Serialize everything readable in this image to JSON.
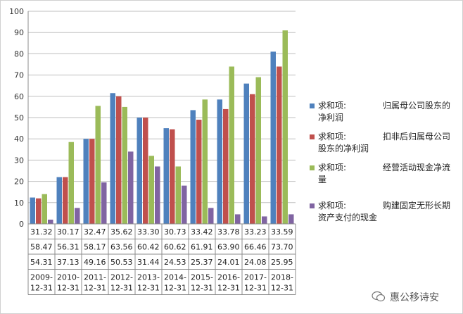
{
  "chart_data": {
    "type": "bar",
    "ylim": [
      0,
      100
    ],
    "yticks": [
      0,
      10,
      20,
      30,
      40,
      50,
      60,
      70,
      80,
      90,
      100
    ],
    "grid": true,
    "legend_position": "right",
    "categories": [
      "2009-12-31",
      "2010-12-31",
      "2011-12-31",
      "2012-12-31",
      "2013-12-31",
      "2014-12-31",
      "2015-12-31",
      "2016-12-31",
      "2017-12-31",
      "2018-12-31"
    ],
    "category_lines": [
      [
        "2009-",
        "12-31"
      ],
      [
        "2010-",
        "12-31"
      ],
      [
        "2011-",
        "12-31"
      ],
      [
        "2012-",
        "12-31"
      ],
      [
        "2013-",
        "12-31"
      ],
      [
        "2014-",
        "12-31"
      ],
      [
        "2015-",
        "12-31"
      ],
      [
        "2016-",
        "12-31"
      ],
      [
        "2017-",
        "12-31"
      ],
      [
        "2018-",
        "12-31"
      ]
    ],
    "series": [
      {
        "name": "求和项:归属母公司股东的净利润",
        "color": "#4f81bd",
        "values": [
          12.4,
          22.0,
          40.0,
          61.5,
          50.0,
          45.0,
          53.5,
          58.5,
          66.0,
          81.0
        ]
      },
      {
        "name": "求和项:扣非后归属母公司股东的净利润",
        "color": "#c0504d",
        "values": [
          12.0,
          22.0,
          40.0,
          60.0,
          50.0,
          44.5,
          49.0,
          54.0,
          61.0,
          74.0
        ]
      },
      {
        "name": "求和项:经营活动现金净流量",
        "color": "#9bbb59",
        "values": [
          14.0,
          38.5,
          55.5,
          55.0,
          32.0,
          27.0,
          58.5,
          74.0,
          69.0,
          91.0
        ]
      },
      {
        "name": "求和项:购建固定无形长期资产支付的现金",
        "color": "#8064a2",
        "values": [
          2.0,
          7.5,
          19.5,
          34.0,
          27.0,
          18.0,
          7.5,
          4.5,
          3.5,
          4.5
        ]
      }
    ],
    "table_rows": [
      [
        "31.32",
        "30.17",
        "32.47",
        "35.62",
        "33.30",
        "30.73",
        "33.42",
        "33.78",
        "33.23",
        "33.59"
      ],
      [
        "58.47",
        "56.31",
        "58.17",
        "63.56",
        "60.42",
        "60.62",
        "61.91",
        "63.90",
        "66.46",
        "73.70"
      ],
      [
        "54.31",
        "37.13",
        "49.16",
        "50.53",
        "31.44",
        "24.53",
        "25.37",
        "24.01",
        "24.08",
        "25.95"
      ]
    ]
  },
  "legend": [
    {
      "prefix": "求和项:",
      "label": "归属母公司股东的净利润",
      "color": "#4f81bd"
    },
    {
      "prefix": "求和项:",
      "label": "扣非后归属母公司股东的净利润",
      "color": "#c0504d"
    },
    {
      "prefix": "求和项:",
      "label": "经营活动现金净流量",
      "color": "#9bbb59"
    },
    {
      "prefix": "求和项:",
      "label": "购建固定无形长期资产支付的现金",
      "color": "#8064a2"
    }
  ],
  "watermark": {
    "text": "惠公移诗安",
    "icon": "wechat-icon"
  }
}
